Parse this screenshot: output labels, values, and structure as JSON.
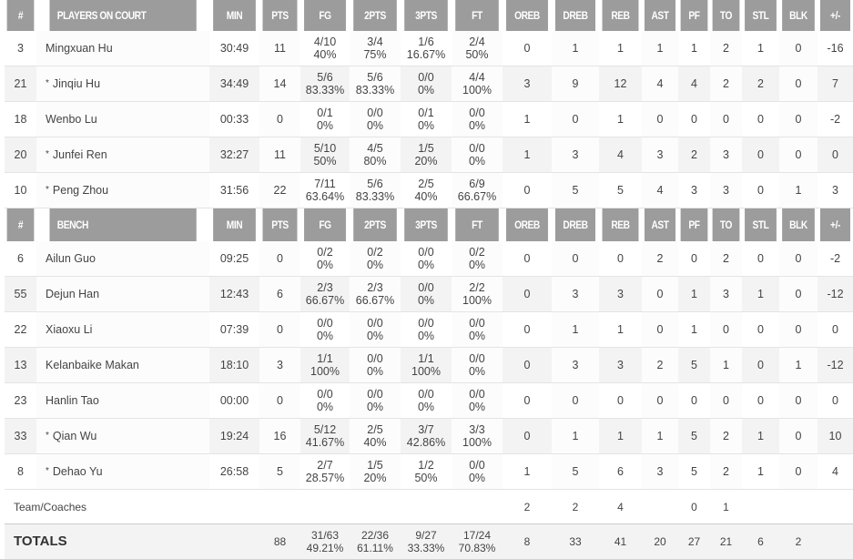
{
  "columns": [
    "#",
    "PLAYERS ON COURT",
    "MIN",
    "PTS",
    "FG",
    "2PTS",
    "3PTS",
    "FT",
    "OREB",
    "DREB",
    "REB",
    "AST",
    "PF",
    "TO",
    "STL",
    "BLK",
    "+/-"
  ],
  "bench_columns": [
    "#",
    "BENCH",
    "MIN",
    "PTS",
    "FG",
    "2PTS",
    "3PTS",
    "FT",
    "OREB",
    "DREB",
    "REB",
    "AST",
    "PF",
    "TO",
    "STL",
    "BLK",
    "+/-"
  ],
  "starter_marker": "*",
  "on_court": [
    {
      "num": "3",
      "name": "Mingxuan Hu",
      "starter": false,
      "min": "30:49",
      "pts": "11",
      "fg": [
        "4/10",
        "40%"
      ],
      "p2": [
        "3/4",
        "75%"
      ],
      "p3": [
        "1/6",
        "16.67%"
      ],
      "ft": [
        "2/4",
        "50%"
      ],
      "oreb": "0",
      "dreb": "1",
      "reb": "1",
      "ast": "1",
      "pf": "1",
      "to": "2",
      "stl": "1",
      "blk": "0",
      "pm": "-16"
    },
    {
      "num": "21",
      "name": "Jinqiu Hu",
      "starter": true,
      "min": "34:49",
      "pts": "14",
      "fg": [
        "5/6",
        "83.33%"
      ],
      "p2": [
        "5/6",
        "83.33%"
      ],
      "p3": [
        "0/0",
        "0%"
      ],
      "ft": [
        "4/4",
        "100%"
      ],
      "oreb": "3",
      "dreb": "9",
      "reb": "12",
      "ast": "4",
      "pf": "4",
      "to": "2",
      "stl": "2",
      "blk": "0",
      "pm": "7"
    },
    {
      "num": "18",
      "name": "Wenbo Lu",
      "starter": false,
      "min": "00:33",
      "pts": "0",
      "fg": [
        "0/1",
        "0%"
      ],
      "p2": [
        "0/0",
        "0%"
      ],
      "p3": [
        "0/1",
        "0%"
      ],
      "ft": [
        "0/0",
        "0%"
      ],
      "oreb": "1",
      "dreb": "0",
      "reb": "1",
      "ast": "0",
      "pf": "0",
      "to": "0",
      "stl": "0",
      "blk": "0",
      "pm": "-2"
    },
    {
      "num": "20",
      "name": "Junfei Ren",
      "starter": true,
      "min": "32:27",
      "pts": "11",
      "fg": [
        "5/10",
        "50%"
      ],
      "p2": [
        "4/5",
        "80%"
      ],
      "p3": [
        "1/5",
        "20%"
      ],
      "ft": [
        "0/0",
        "0%"
      ],
      "oreb": "1",
      "dreb": "3",
      "reb": "4",
      "ast": "3",
      "pf": "2",
      "to": "3",
      "stl": "0",
      "blk": "0",
      "pm": "0"
    },
    {
      "num": "10",
      "name": "Peng Zhou",
      "starter": true,
      "min": "31:56",
      "pts": "22",
      "fg": [
        "7/11",
        "63.64%"
      ],
      "p2": [
        "5/6",
        "83.33%"
      ],
      "p3": [
        "2/5",
        "40%"
      ],
      "ft": [
        "6/9",
        "66.67%"
      ],
      "oreb": "0",
      "dreb": "5",
      "reb": "5",
      "ast": "4",
      "pf": "3",
      "to": "3",
      "stl": "0",
      "blk": "1",
      "pm": "3"
    }
  ],
  "bench": [
    {
      "num": "6",
      "name": "Ailun Guo",
      "starter": false,
      "min": "09:25",
      "pts": "0",
      "fg": [
        "0/2",
        "0%"
      ],
      "p2": [
        "0/2",
        "0%"
      ],
      "p3": [
        "0/0",
        "0%"
      ],
      "ft": [
        "0/2",
        "0%"
      ],
      "oreb": "0",
      "dreb": "0",
      "reb": "0",
      "ast": "2",
      "pf": "0",
      "to": "2",
      "stl": "0",
      "blk": "0",
      "pm": "-2"
    },
    {
      "num": "55",
      "name": "Dejun Han",
      "starter": false,
      "min": "12:43",
      "pts": "6",
      "fg": [
        "2/3",
        "66.67%"
      ],
      "p2": [
        "2/3",
        "66.67%"
      ],
      "p3": [
        "0/0",
        "0%"
      ],
      "ft": [
        "2/2",
        "100%"
      ],
      "oreb": "0",
      "dreb": "3",
      "reb": "3",
      "ast": "0",
      "pf": "1",
      "to": "3",
      "stl": "1",
      "blk": "0",
      "pm": "-12"
    },
    {
      "num": "22",
      "name": "Xiaoxu Li",
      "starter": false,
      "min": "07:39",
      "pts": "0",
      "fg": [
        "0/0",
        "0%"
      ],
      "p2": [
        "0/0",
        "0%"
      ],
      "p3": [
        "0/0",
        "0%"
      ],
      "ft": [
        "0/0",
        "0%"
      ],
      "oreb": "0",
      "dreb": "1",
      "reb": "1",
      "ast": "0",
      "pf": "1",
      "to": "0",
      "stl": "0",
      "blk": "0",
      "pm": "0"
    },
    {
      "num": "13",
      "name": "Kelanbaike Makan",
      "starter": false,
      "min": "18:10",
      "pts": "3",
      "fg": [
        "1/1",
        "100%"
      ],
      "p2": [
        "0/0",
        "0%"
      ],
      "p3": [
        "1/1",
        "100%"
      ],
      "ft": [
        "0/0",
        "0%"
      ],
      "oreb": "0",
      "dreb": "3",
      "reb": "3",
      "ast": "2",
      "pf": "5",
      "to": "1",
      "stl": "0",
      "blk": "1",
      "pm": "-12"
    },
    {
      "num": "23",
      "name": "Hanlin Tao",
      "starter": false,
      "min": "00:00",
      "pts": "0",
      "fg": [
        "0/0",
        "0%"
      ],
      "p2": [
        "0/0",
        "0%"
      ],
      "p3": [
        "0/0",
        "0%"
      ],
      "ft": [
        "0/0",
        "0%"
      ],
      "oreb": "0",
      "dreb": "0",
      "reb": "0",
      "ast": "0",
      "pf": "0",
      "to": "0",
      "stl": "0",
      "blk": "0",
      "pm": "0"
    },
    {
      "num": "33",
      "name": "Qian Wu",
      "starter": true,
      "min": "19:24",
      "pts": "16",
      "fg": [
        "5/12",
        "41.67%"
      ],
      "p2": [
        "2/5",
        "40%"
      ],
      "p3": [
        "3/7",
        "42.86%"
      ],
      "ft": [
        "3/3",
        "100%"
      ],
      "oreb": "0",
      "dreb": "1",
      "reb": "1",
      "ast": "1",
      "pf": "5",
      "to": "2",
      "stl": "1",
      "blk": "0",
      "pm": "10"
    },
    {
      "num": "8",
      "name": "Dehao Yu",
      "starter": true,
      "min": "26:58",
      "pts": "5",
      "fg": [
        "2/7",
        "28.57%"
      ],
      "p2": [
        "1/5",
        "20%"
      ],
      "p3": [
        "1/2",
        "50%"
      ],
      "ft": [
        "0/0",
        "0%"
      ],
      "oreb": "1",
      "dreb": "5",
      "reb": "6",
      "ast": "3",
      "pf": "5",
      "to": "2",
      "stl": "1",
      "blk": "0",
      "pm": "4"
    }
  ],
  "team": {
    "label": "Team/Coaches",
    "oreb": "2",
    "dreb": "2",
    "reb": "4",
    "pf": "0",
    "to": "1"
  },
  "totals": {
    "label": "TOTALS",
    "pts": "88",
    "fg": [
      "31/63",
      "49.21%"
    ],
    "p2": [
      "22/36",
      "61.11%"
    ],
    "p3": [
      "9/27",
      "33.33%"
    ],
    "ft": [
      "17/24",
      "70.83%"
    ],
    "oreb": "8",
    "dreb": "33",
    "reb": "41",
    "ast": "20",
    "pf": "27",
    "to": "21",
    "stl": "6",
    "blk": "2"
  },
  "colors": {
    "header_bg": "#9c9c9c",
    "header_text": "#ffffff",
    "row_alt": "#f3f3f3"
  }
}
